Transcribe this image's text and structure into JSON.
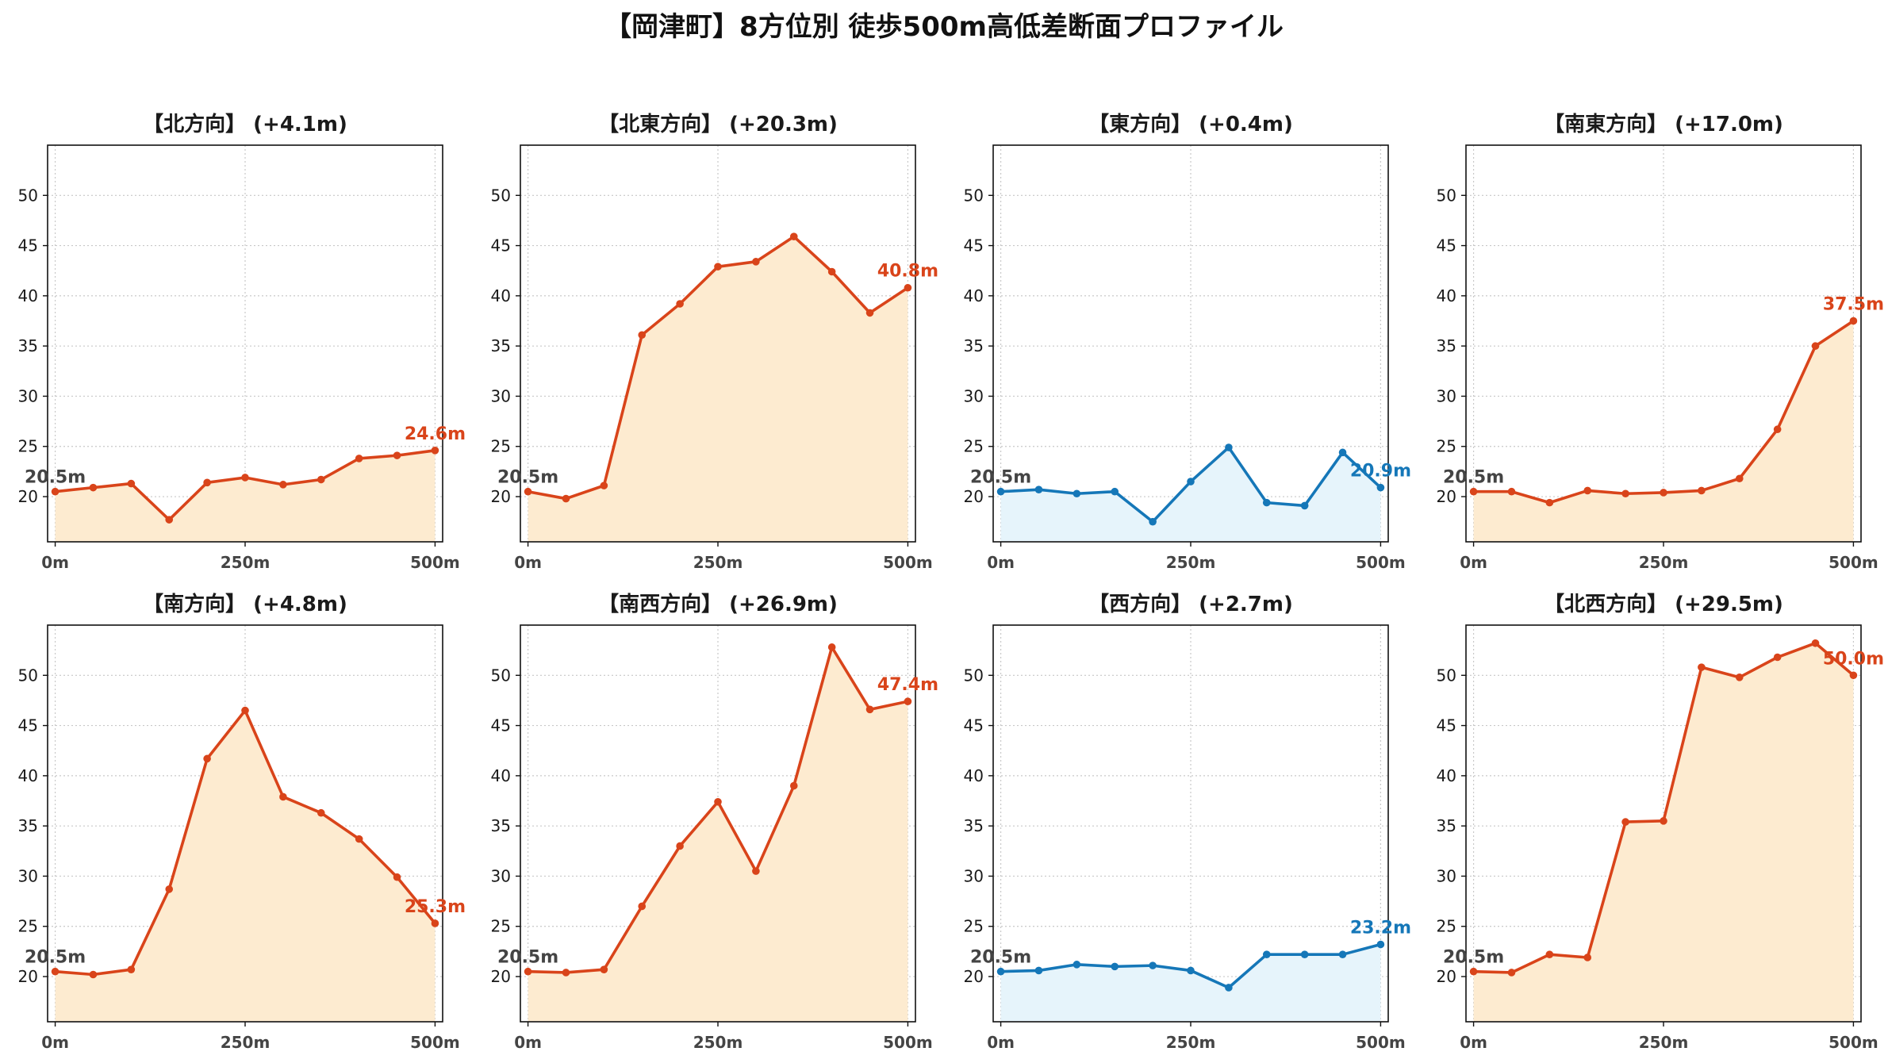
{
  "title": "【岡津町】8方位別 徒歩500m高低差断面プロファイル",
  "colors": {
    "up_line": "#d9441a",
    "up_fill": "#fdebd0",
    "flat_line": "#1577b8",
    "flat_fill": "#e6f4fb",
    "grid": "#c8c8c8",
    "start_label": "#444444"
  },
  "chart_data": [
    {
      "type": "line",
      "title": "【北方向】 (+4.1m)",
      "color_scheme": "up",
      "x": [
        0,
        50,
        100,
        150,
        200,
        250,
        300,
        350,
        400,
        450,
        500
      ],
      "y": [
        20.5,
        20.9,
        21.3,
        17.7,
        21.4,
        21.9,
        21.2,
        21.7,
        23.8,
        24.1,
        24.6
      ],
      "x_tick_labels": [
        "0m",
        "250m",
        "500m"
      ],
      "x_ticks": [
        0,
        250,
        500
      ],
      "y_ticks": [
        20,
        25,
        30,
        35,
        40,
        45,
        50
      ],
      "xlim": [
        -10,
        510
      ],
      "ylim": [
        15.5,
        55
      ],
      "start_label": "20.5m",
      "end_label": "24.6m",
      "grid": true
    },
    {
      "type": "line",
      "title": "【北東方向】 (+20.3m)",
      "color_scheme": "up",
      "x": [
        0,
        50,
        100,
        150,
        200,
        250,
        300,
        350,
        400,
        450,
        500
      ],
      "y": [
        20.5,
        19.8,
        21.1,
        36.1,
        39.2,
        42.9,
        43.4,
        45.9,
        42.4,
        38.3,
        40.8
      ],
      "x_tick_labels": [
        "0m",
        "250m",
        "500m"
      ],
      "x_ticks": [
        0,
        250,
        500
      ],
      "y_ticks": [
        20,
        25,
        30,
        35,
        40,
        45,
        50
      ],
      "xlim": [
        -10,
        510
      ],
      "ylim": [
        15.5,
        55
      ],
      "start_label": "20.5m",
      "end_label": "40.8m",
      "grid": true
    },
    {
      "type": "line",
      "title": "【東方向】 (+0.4m)",
      "color_scheme": "flat",
      "x": [
        0,
        50,
        100,
        150,
        200,
        250,
        300,
        350,
        400,
        450,
        500
      ],
      "y": [
        20.5,
        20.7,
        20.3,
        20.5,
        17.5,
        21.5,
        24.9,
        19.4,
        19.1,
        24.4,
        20.9
      ],
      "x_tick_labels": [
        "0m",
        "250m",
        "500m"
      ],
      "x_ticks": [
        0,
        250,
        500
      ],
      "y_ticks": [
        20,
        25,
        30,
        35,
        40,
        45,
        50
      ],
      "xlim": [
        -10,
        510
      ],
      "ylim": [
        15.5,
        55
      ],
      "start_label": "20.5m",
      "end_label": "20.9m",
      "grid": true
    },
    {
      "type": "line",
      "title": "【南東方向】 (+17.0m)",
      "color_scheme": "up",
      "x": [
        0,
        50,
        100,
        150,
        200,
        250,
        300,
        350,
        400,
        450,
        500
      ],
      "y": [
        20.5,
        20.5,
        19.4,
        20.6,
        20.3,
        20.4,
        20.6,
        21.8,
        26.7,
        35.0,
        37.5
      ],
      "x_tick_labels": [
        "0m",
        "250m",
        "500m"
      ],
      "x_ticks": [
        0,
        250,
        500
      ],
      "y_ticks": [
        20,
        25,
        30,
        35,
        40,
        45,
        50
      ],
      "xlim": [
        -10,
        510
      ],
      "ylim": [
        15.5,
        55
      ],
      "start_label": "20.5m",
      "end_label": "37.5m",
      "grid": true
    },
    {
      "type": "line",
      "title": "【南方向】 (+4.8m)",
      "color_scheme": "up",
      "x": [
        0,
        50,
        100,
        150,
        200,
        250,
        300,
        350,
        400,
        450,
        500
      ],
      "y": [
        20.5,
        20.2,
        20.7,
        28.7,
        41.7,
        46.5,
        37.9,
        36.3,
        33.7,
        29.9,
        25.3
      ],
      "x_tick_labels": [
        "0m",
        "250m",
        "500m"
      ],
      "x_ticks": [
        0,
        250,
        500
      ],
      "y_ticks": [
        20,
        25,
        30,
        35,
        40,
        45,
        50
      ],
      "xlim": [
        -10,
        510
      ],
      "ylim": [
        15.5,
        55
      ],
      "start_label": "20.5m",
      "end_label": "25.3m",
      "grid": true
    },
    {
      "type": "line",
      "title": "【南西方向】 (+26.9m)",
      "color_scheme": "up",
      "x": [
        0,
        50,
        100,
        150,
        200,
        250,
        300,
        350,
        400,
        450,
        500
      ],
      "y": [
        20.5,
        20.4,
        20.7,
        27.0,
        33.0,
        37.4,
        30.5,
        39.0,
        52.8,
        46.6,
        47.4
      ],
      "x_tick_labels": [
        "0m",
        "250m",
        "500m"
      ],
      "x_ticks": [
        0,
        250,
        500
      ],
      "y_ticks": [
        20,
        25,
        30,
        35,
        40,
        45,
        50
      ],
      "xlim": [
        -10,
        510
      ],
      "ylim": [
        15.5,
        55
      ],
      "start_label": "20.5m",
      "end_label": "47.4m",
      "grid": true
    },
    {
      "type": "line",
      "title": "【西方向】 (+2.7m)",
      "color_scheme": "flat",
      "x": [
        0,
        50,
        100,
        150,
        200,
        250,
        300,
        350,
        400,
        450,
        500
      ],
      "y": [
        20.5,
        20.6,
        21.2,
        21.0,
        21.1,
        20.6,
        18.9,
        22.2,
        22.2,
        22.2,
        23.2
      ],
      "x_tick_labels": [
        "0m",
        "250m",
        "500m"
      ],
      "x_ticks": [
        0,
        250,
        500
      ],
      "y_ticks": [
        20,
        25,
        30,
        35,
        40,
        45,
        50
      ],
      "xlim": [
        -10,
        510
      ],
      "ylim": [
        15.5,
        55
      ],
      "start_label": "20.5m",
      "end_label": "23.2m",
      "grid": true
    },
    {
      "type": "line",
      "title": "【北西方向】 (+29.5m)",
      "color_scheme": "up",
      "x": [
        0,
        50,
        100,
        150,
        200,
        250,
        300,
        350,
        400,
        450,
        500
      ],
      "y": [
        20.5,
        20.4,
        22.2,
        21.9,
        35.4,
        35.5,
        50.8,
        49.8,
        51.8,
        53.2,
        50.0
      ],
      "x_tick_labels": [
        "0m",
        "250m",
        "500m"
      ],
      "x_ticks": [
        0,
        250,
        500
      ],
      "y_ticks": [
        20,
        25,
        30,
        35,
        40,
        45,
        50
      ],
      "xlim": [
        -10,
        510
      ],
      "ylim": [
        15.5,
        55
      ],
      "start_label": "20.5m",
      "end_label": "50.0m",
      "grid": true
    }
  ]
}
